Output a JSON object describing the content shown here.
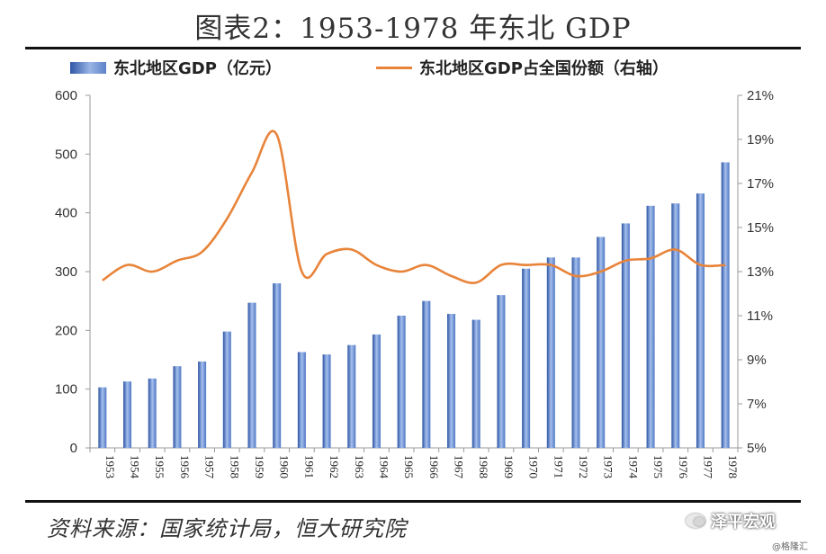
{
  "title": "图表2：1953-1978 年东北 GDP",
  "source": "资料来源：国家统计局，恒大研究院",
  "watermark": {
    "icon": "wechat-icon",
    "label": "泽平宏观",
    "credit": "@格隆汇"
  },
  "colors": {
    "bar": "#4a72c0",
    "line": "#e8843a",
    "axis": "#999999"
  },
  "chart_data": {
    "type": "bar+line",
    "categories": [
      "1953",
      "1954",
      "1955",
      "1956",
      "1957",
      "1958",
      "1959",
      "1960",
      "1961",
      "1962",
      "1963",
      "1964",
      "1965",
      "1966",
      "1967",
      "1968",
      "1969",
      "1970",
      "1971",
      "1972",
      "1973",
      "1974",
      "1975",
      "1976",
      "1977",
      "1978"
    ],
    "series": [
      {
        "name": "东北地区GDP（亿元）",
        "type": "bar",
        "axis": "left",
        "values": [
          103,
          113,
          118,
          139,
          147,
          198,
          247,
          280,
          163,
          159,
          175,
          193,
          225,
          250,
          228,
          218,
          260,
          305,
          324,
          324,
          359,
          382,
          412,
          416,
          433,
          486
        ]
      },
      {
        "name": "东北地区GDP占全国份额（右轴）",
        "type": "line",
        "axis": "right",
        "values": [
          12.6,
          13.3,
          13.0,
          13.5,
          13.9,
          15.4,
          17.5,
          19.2,
          13.0,
          13.8,
          14.0,
          13.3,
          13.0,
          13.3,
          12.8,
          12.5,
          13.3,
          13.3,
          13.3,
          12.8,
          13.0,
          13.5,
          13.6,
          14.0,
          13.3,
          13.3
        ]
      }
    ],
    "ylim": [
      0,
      600
    ],
    "yticks": [
      "0",
      "100",
      "200",
      "300",
      "400",
      "500",
      "600"
    ],
    "y2lim": [
      5,
      21
    ],
    "y2ticks": [
      "5%",
      "7%",
      "9%",
      "11%",
      "13%",
      "15%",
      "17%",
      "19%",
      "21%"
    ],
    "legend": "top",
    "grid": false
  }
}
